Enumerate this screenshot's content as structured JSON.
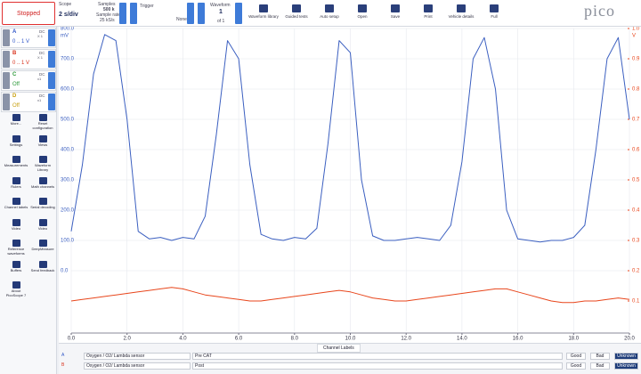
{
  "toolbar": {
    "status": "Stopped",
    "scope": {
      "label": "Scope",
      "timebase": "2 s/div",
      "samples_label": "Samples",
      "samples": "500 k",
      "sample_rate_label": "Sample rate",
      "sample_rate": "25 kS/s"
    },
    "trigger": {
      "label": "Trigger",
      "mode": "None"
    },
    "waveform": {
      "label": "Waveform",
      "number": "1",
      "of": "of 1"
    },
    "buttons": [
      "Waveform library",
      "Guided tests",
      "Auto setup",
      "Open",
      "Save",
      "Print",
      "Vehicle details",
      "Full"
    ],
    "logo": "pico"
  },
  "channels": [
    {
      "name": "A",
      "coupling": "DC",
      "probe": "X 1",
      "range": "0 .. 1 V"
    },
    {
      "name": "B",
      "coupling": "DC",
      "probe": "X 1",
      "range": "0 .. 1 V"
    },
    {
      "name": "C",
      "coupling": "DC",
      "probe": "x1",
      "range": "Off"
    },
    {
      "name": "D",
      "coupling": "DC",
      "probe": "x1",
      "range": "Off"
    }
  ],
  "tools": [
    "More...",
    "Reset configuration",
    "Settings",
    "Views",
    "Measurements",
    "Waveform Library",
    "Rulers",
    "Math channels",
    "Channel labels",
    "Serial decoding",
    "Video",
    "Video",
    "Reference waveforms",
    "DeepMeasure",
    "Buffers",
    "Send feedback",
    "About PicoScope 7"
  ],
  "chart_data": {
    "type": "line",
    "ylabel": "mV",
    "y2label": "V",
    "x": [
      0,
      0.4,
      0.8,
      1.2,
      1.6,
      2,
      2.4,
      2.8,
      3.2,
      3.6,
      4,
      4.4,
      4.8,
      5.2,
      5.6,
      6,
      6.4,
      6.8,
      7.2,
      7.6,
      8,
      8.4,
      8.8,
      9.2,
      9.6,
      10,
      10.4,
      10.8,
      11.2,
      11.6,
      12,
      12.4,
      12.8,
      13.2,
      13.6,
      14,
      14.4,
      14.8,
      15.2,
      15.6,
      16,
      16.4,
      16.8,
      17.2,
      17.6,
      18,
      18.4,
      18.8,
      19.2,
      19.6,
      20
    ],
    "series": [
      {
        "name": "A",
        "color": "#3b5fc0",
        "axis": "y",
        "values": [
          130,
          350,
          650,
          780,
          760,
          500,
          130,
          105,
          110,
          100,
          110,
          105,
          180,
          450,
          760,
          700,
          350,
          120,
          105,
          100,
          110,
          105,
          140,
          420,
          760,
          720,
          300,
          115,
          100,
          100,
          105,
          110,
          105,
          100,
          150,
          360,
          700,
          770,
          600,
          200,
          105,
          100,
          95,
          100,
          100,
          110,
          150,
          400,
          700,
          770,
          500
        ]
      },
      {
        "name": "B",
        "color": "#e8461c",
        "axis": "y2",
        "values": [
          0.1,
          0.105,
          0.11,
          0.115,
          0.12,
          0.125,
          0.13,
          0.135,
          0.14,
          0.145,
          0.14,
          0.13,
          0.12,
          0.115,
          0.11,
          0.105,
          0.1,
          0.1,
          0.105,
          0.11,
          0.115,
          0.12,
          0.125,
          0.13,
          0.135,
          0.13,
          0.12,
          0.11,
          0.105,
          0.1,
          0.1,
          0.105,
          0.11,
          0.115,
          0.12,
          0.125,
          0.13,
          0.135,
          0.14,
          0.14,
          0.13,
          0.12,
          0.11,
          0.1,
          0.095,
          0.095,
          0.1,
          0.1,
          0.105,
          0.11,
          0.105
        ]
      }
    ],
    "xlim": [
      0,
      20
    ],
    "xticks": [
      {
        "value": 0,
        "label": "0.0"
      },
      {
        "value": 2,
        "label": "2.0"
      },
      {
        "value": 4,
        "label": "4.0"
      },
      {
        "value": 6,
        "label": "6.0"
      },
      {
        "value": 8,
        "label": "8.0"
      },
      {
        "value": 10,
        "label": "10.0"
      },
      {
        "value": 12,
        "label": "12.0"
      },
      {
        "value": 14,
        "label": "14.0"
      },
      {
        "value": 16,
        "label": "16.0"
      },
      {
        "value": 18,
        "label": "18.0"
      },
      {
        "value": 20,
        "label": "20.0"
      }
    ],
    "ylim": [
      -200,
      800
    ],
    "yticks": [
      {
        "value": 0,
        "label": "0.0"
      },
      {
        "value": 100,
        "label": "100.0"
      },
      {
        "value": 200,
        "label": "200.0"
      },
      {
        "value": 300,
        "label": "300.0"
      },
      {
        "value": 400,
        "label": "400.0"
      },
      {
        "value": 500,
        "label": "500.0"
      },
      {
        "value": 600,
        "label": "600.0"
      },
      {
        "value": 700,
        "label": "700.0"
      },
      {
        "value": 800,
        "label": "800.0"
      }
    ],
    "y2lim": [
      0,
      1
    ],
    "y2ticks": [
      0.1,
      0.2,
      0.3,
      0.4,
      0.5,
      0.6,
      0.7,
      0.8,
      0.9,
      {
        "value": 1,
        "label": "1.0"
      }
    ],
    "grid": true
  },
  "channel_labels": {
    "title": "Channel Labels",
    "rows": [
      {
        "channel": "A",
        "sensor": "Oxygen / O2/ Lambda sensor",
        "label": "Pre CAT",
        "options": [
          "Good",
          "Bad",
          "Unknown"
        ]
      },
      {
        "channel": "B",
        "sensor": "Oxygen / O2/ Lambda sensor",
        "label": "Post",
        "options": [
          "Good",
          "Bad",
          "Unknown"
        ]
      }
    ]
  }
}
